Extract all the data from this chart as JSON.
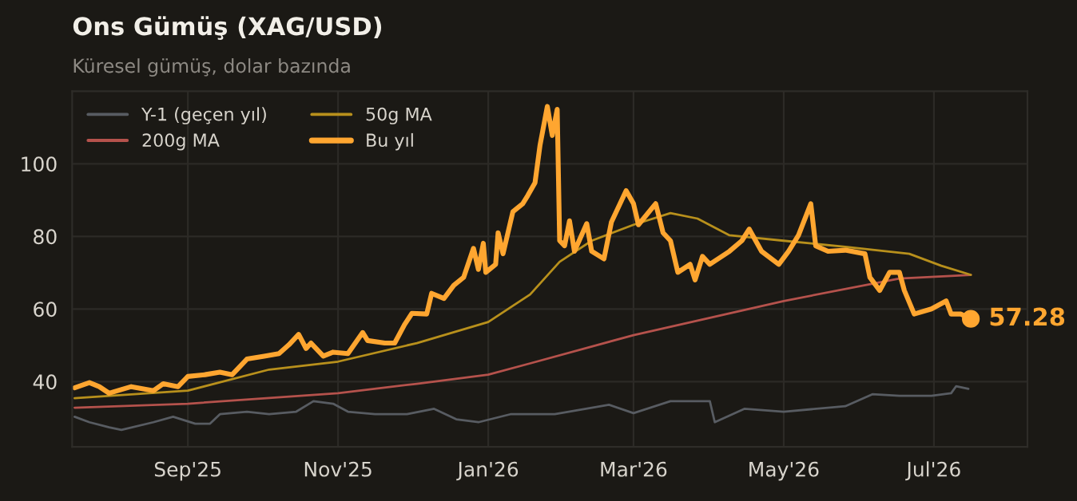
{
  "chart_data": {
    "type": "line",
    "title": "Ons Gümüş (XAG/USD)",
    "subtitle": "Küresel gümüş, dolar bazında",
    "xlim": [
      "2025-07-16",
      "2026-08-08"
    ],
    "ylim": [
      22,
      120
    ],
    "xticks": [
      {
        "value": "2025-09-01",
        "label": "Sep'25"
      },
      {
        "value": "2025-11-01",
        "label": "Nov'25"
      },
      {
        "value": "2026-01-01",
        "label": "Jan'26"
      },
      {
        "value": "2026-03-01",
        "label": "Mar'26"
      },
      {
        "value": "2026-05-01",
        "label": "May'26"
      },
      {
        "value": "2026-07-01",
        "label": "Jul'26"
      }
    ],
    "yticks": [
      40,
      60,
      80,
      100
    ],
    "grid": true,
    "legend": "top left",
    "marker": "none",
    "line_style": "solid",
    "annotations": [
      {
        "text": "57.28",
        "x": "2026-07-16",
        "y": 57.28
      }
    ],
    "series": [
      {
        "name": "Y-1 (geçen yıl)",
        "color": "#585c62",
        "x": [
          "2025-07-17",
          "2025-07-23",
          "2025-07-31",
          "2025-08-05",
          "2025-08-18",
          "2025-08-26",
          "2025-09-04",
          "2025-09-10",
          "2025-09-14",
          "2025-09-25",
          "2025-10-04",
          "2025-10-15",
          "2025-10-22",
          "2025-10-30",
          "2025-11-05",
          "2025-11-16",
          "2025-11-29",
          "2025-12-10",
          "2025-12-19",
          "2025-12-28",
          "2026-01-10",
          "2026-01-22",
          "2026-01-28",
          "2026-02-19",
          "2026-03-01",
          "2026-03-16",
          "2026-04-01",
          "2026-04-03",
          "2026-04-15",
          "2026-05-01",
          "2026-05-26",
          "2026-06-06",
          "2026-06-17",
          "2026-06-30",
          "2026-07-08",
          "2026-07-10",
          "2026-07-15"
        ],
        "values": [
          30.3,
          28.8,
          27.4,
          26.7,
          28.8,
          30.3,
          28.4,
          28.4,
          31.0,
          31.7,
          31.0,
          31.7,
          34.6,
          33.9,
          31.7,
          31.0,
          31.0,
          32.5,
          29.6,
          28.8,
          31.0,
          31.0,
          31.0,
          33.6,
          31.3,
          34.6,
          34.6,
          28.8,
          32.5,
          31.7,
          33.2,
          36.5,
          36.1,
          36.1,
          36.8,
          38.7,
          38.0
        ]
      },
      {
        "name": "200g MA",
        "color": "#b5524c",
        "x": [
          "2025-07-17",
          "2025-09-01",
          "2025-11-01",
          "2025-12-03",
          "2026-01-01",
          "2026-01-18",
          "2026-03-01",
          "2026-05-01",
          "2026-06-17",
          "2026-07-16"
        ],
        "values": [
          32.8,
          33.9,
          36.8,
          39.4,
          41.9,
          45.0,
          52.8,
          62.2,
          68.4,
          69.4
        ]
      },
      {
        "name": "50g MA",
        "color": "#b8901c",
        "x": [
          "2025-07-17",
          "2025-09-01",
          "2025-10-04",
          "2025-11-01",
          "2025-12-03",
          "2026-01-01",
          "2026-01-18",
          "2026-01-30",
          "2026-02-12",
          "2026-03-01",
          "2026-03-16",
          "2026-03-27",
          "2026-04-09",
          "2026-05-01",
          "2026-05-26",
          "2026-06-21",
          "2026-07-04",
          "2026-07-16"
        ],
        "values": [
          35.4,
          37.5,
          43.3,
          45.5,
          50.6,
          56.4,
          64.0,
          73.0,
          78.8,
          83.2,
          86.4,
          84.9,
          80.3,
          78.8,
          77.1,
          75.2,
          71.9,
          69.4
        ]
      },
      {
        "name": "Bu yıl",
        "color": "#ffa630",
        "x": [
          "2025-07-17",
          "2025-07-23",
          "2025-07-27",
          "2025-07-31",
          "2025-08-09",
          "2025-08-18",
          "2025-08-22",
          "2025-08-28",
          "2025-09-01",
          "2025-09-08",
          "2025-09-14",
          "2025-09-19",
          "2025-09-25",
          "2025-10-02",
          "2025-10-08",
          "2025-10-12",
          "2025-10-16",
          "2025-10-19",
          "2025-10-21",
          "2025-10-26",
          "2025-10-30",
          "2025-11-05",
          "2025-11-11",
          "2025-11-13",
          "2025-11-20",
          "2025-11-24",
          "2025-11-28",
          "2025-12-01",
          "2025-12-07",
          "2025-12-09",
          "2025-12-14",
          "2025-12-18",
          "2025-12-22",
          "2025-12-26",
          "2025-12-28",
          "2025-12-30",
          "2025-12-31",
          "2026-01-04",
          "2026-01-05",
          "2026-01-07",
          "2026-01-11",
          "2026-01-15",
          "2026-01-17",
          "2026-01-20",
          "2026-01-22",
          "2026-01-25",
          "2026-01-27",
          "2026-01-29",
          "2026-01-30",
          "2026-02-01",
          "2026-02-03",
          "2026-02-05",
          "2026-02-10",
          "2026-02-12",
          "2026-02-17",
          "2026-02-20",
          "2026-02-26",
          "2026-03-01",
          "2026-03-03",
          "2026-03-10",
          "2026-03-13",
          "2026-03-16",
          "2026-03-19",
          "2026-03-24",
          "2026-03-26",
          "2026-03-29",
          "2026-04-01",
          "2026-04-09",
          "2026-04-14",
          "2026-04-17",
          "2026-04-22",
          "2026-04-29",
          "2026-05-03",
          "2026-05-07",
          "2026-05-12",
          "2026-05-14",
          "2026-05-19",
          "2026-05-26",
          "2026-06-03",
          "2026-06-05",
          "2026-06-09",
          "2026-06-13",
          "2026-06-17",
          "2026-06-19",
          "2026-06-23",
          "2026-06-30",
          "2026-07-06",
          "2026-07-08",
          "2026-07-12",
          "2026-07-16"
        ],
        "values": [
          38.3,
          39.7,
          38.6,
          36.8,
          38.6,
          37.5,
          39.4,
          38.6,
          41.4,
          41.9,
          42.6,
          41.9,
          46.2,
          47.0,
          47.7,
          50.1,
          53.0,
          49.1,
          50.6,
          47.0,
          48.1,
          47.7,
          53.5,
          51.3,
          50.6,
          50.6,
          55.7,
          58.8,
          58.6,
          64.3,
          62.9,
          66.5,
          68.7,
          76.7,
          70.9,
          78.1,
          70.1,
          72.3,
          81.0,
          75.2,
          86.8,
          89.0,
          91.2,
          94.8,
          105.0,
          115.8,
          107.8,
          115.0,
          78.8,
          77.4,
          84.3,
          75.9,
          83.5,
          75.9,
          73.8,
          83.9,
          92.6,
          89.0,
          83.2,
          89.0,
          81.0,
          78.8,
          70.1,
          72.3,
          68.0,
          74.5,
          72.3,
          75.9,
          78.8,
          82.0,
          75.9,
          72.3,
          75.9,
          80.3,
          89.0,
          77.4,
          75.9,
          76.2,
          75.2,
          68.7,
          65.1,
          70.1,
          70.1,
          65.1,
          58.6,
          60.0,
          62.2,
          58.6,
          58.6,
          57.28
        ]
      }
    ]
  }
}
